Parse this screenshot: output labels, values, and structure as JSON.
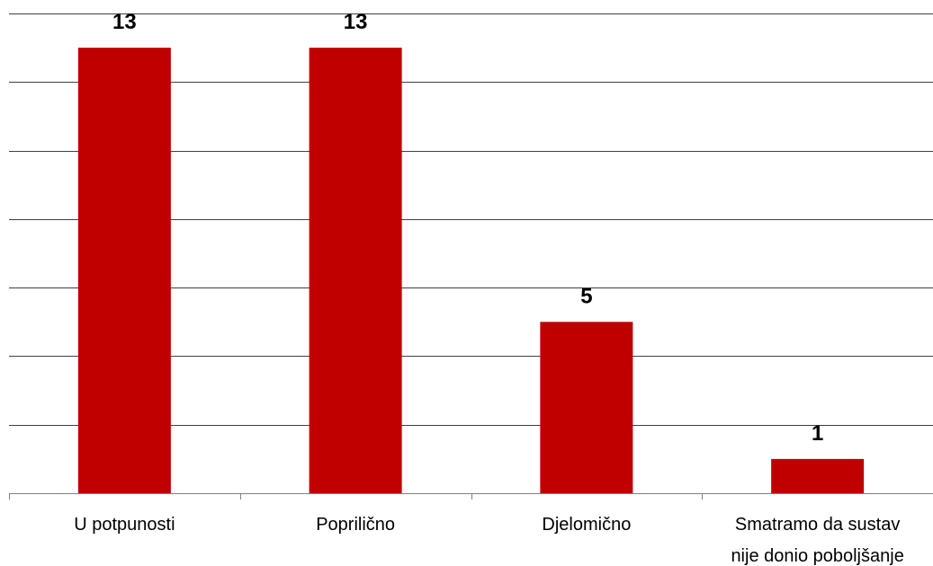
{
  "chart_data": {
    "type": "bar",
    "categories": [
      "U potpunosti",
      "Popriličnо",
      "Djelomično",
      "Smatramo da sustav nije donio poboljšanje"
    ],
    "category_lines": [
      [
        "U potpunosti"
      ],
      [
        "Popriličnо"
      ],
      [
        "Djelomično"
      ],
      [
        "Smatramo da sustav",
        "nije donio poboljšanje"
      ]
    ],
    "values": [
      13,
      13,
      5,
      1
    ],
    "data_labels": [
      "13",
      "13",
      "5",
      "1"
    ],
    "ylim": [
      0,
      14
    ],
    "y_grid_step": 2,
    "grid": true,
    "xlabel": "",
    "ylabel": "",
    "title": "",
    "bar_color": "#c00000",
    "grid_color": "#000000"
  }
}
